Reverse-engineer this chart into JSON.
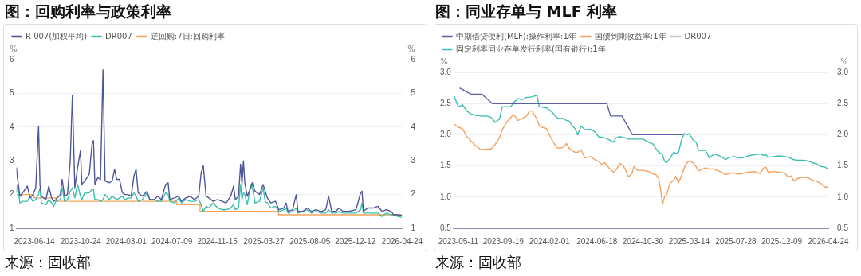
{
  "chart_data": [
    {
      "type": "line",
      "title": "图：回购利率与政策利率",
      "ylabel": "%",
      "y2label": "%",
      "annotations": [
        "来源：固收部"
      ],
      "x": [
        "2023-04-24",
        "2023-04-27",
        "2023-05-04",
        "2023-05-12",
        "2023-05-25",
        "2023-06-02",
        "2023-06-10",
        "2023-06-18",
        "2023-06-26",
        "2023-06-30",
        "2023-07-04",
        "2023-07-17",
        "2023-07-25",
        "2023-08-02",
        "2023-08-08",
        "2023-08-14",
        "2023-08-27",
        "2023-09-01",
        "2023-09-08",
        "2023-09-16",
        "2023-09-24",
        "2023-09-30",
        "2023-10-07",
        "2023-10-15",
        "2023-10-23",
        "2023-10-27",
        "2023-11-04",
        "2023-11-17",
        "2023-11-25",
        "2023-11-29",
        "2023-12-03",
        "2023-12-11",
        "2023-12-19",
        "2023-12-26",
        "2024-01-01",
        "2024-01-13",
        "2024-01-21",
        "2024-01-28",
        "2024-02-03",
        "2024-02-11",
        "2024-02-19",
        "2024-02-27",
        "2024-03-06",
        "2024-03-15",
        "2024-03-23",
        "2024-03-29",
        "2024-04-04",
        "2024-04-16",
        "2024-04-29",
        "2024-05-07",
        "2024-05-19",
        "2024-05-30",
        "2024-06-09",
        "2024-06-21",
        "2024-06-28",
        "2024-07-03",
        "2024-07-16",
        "2024-07-28",
        "2024-08-05",
        "2024-08-17",
        "2024-08-30",
        "2024-09-11",
        "2024-09-23",
        "2024-09-30",
        "2024-10-06",
        "2024-10-14",
        "2024-10-22",
        "2024-11-03",
        "2024-11-16",
        "2024-11-28",
        "2024-12-10",
        "2024-12-23",
        "2024-12-31",
        "2025-01-05",
        "2025-01-14",
        "2025-01-20",
        "2025-01-24",
        "2025-01-28",
        "2025-02-01",
        "2025-02-08",
        "2025-02-18",
        "2025-02-22",
        "2025-03-02",
        "2025-03-15",
        "2025-03-25",
        "2025-03-31",
        "2025-04-06",
        "2025-04-16",
        "2025-04-29",
        "2025-05-09",
        "2025-05-23",
        "2025-05-29",
        "2025-06-04",
        "2025-06-17",
        "2025-06-27",
        "2025-07-02",
        "2025-07-16",
        "2025-07-28",
        "2025-08-09",
        "2025-08-21",
        "2025-09-07",
        "2025-09-19",
        "2025-09-27",
        "2025-10-06",
        "2025-10-18",
        "2025-10-26",
        "2025-11-07",
        "2025-11-24",
        "2025-12-14",
        "2025-12-27",
        "2025-12-31",
        "2026-01-04",
        "2026-01-16",
        "2026-02-01",
        "2026-02-14",
        "2026-02-26",
        "2026-03-10",
        "2026-03-24",
        "2026-03-31",
        "2026-04-12",
        "2026-04-24"
      ],
      "series": [
        {
          "name": "R-007(加权平均)",
          "color": "#4e5699",
          "values": [
            2.8,
            2.5,
            1.95,
            2.05,
            2.25,
            1.9,
            2.0,
            2.2,
            4.03,
            2.3,
            1.95,
            1.85,
            2.25,
            1.9,
            1.8,
            1.85,
            2.0,
            2.45,
            1.95,
            2.0,
            3.0,
            4.95,
            2.2,
            2.8,
            3.3,
            2.3,
            2.4,
            2.6,
            3.5,
            3.6,
            2.3,
            2.5,
            2.45,
            5.7,
            2.4,
            2.35,
            2.4,
            2.75,
            2.45,
            2.45,
            2.05,
            2.0,
            2.0,
            1.95,
            2.55,
            2.75,
            2.05,
            1.95,
            2.1,
            1.85,
            1.85,
            1.95,
            1.85,
            2.3,
            2.35,
            1.85,
            1.9,
            1.95,
            1.8,
            1.9,
            1.95,
            1.85,
            1.95,
            2.65,
            2.85,
            1.95,
            1.9,
            1.8,
            1.85,
            1.8,
            1.75,
            1.95,
            2.25,
            1.85,
            1.95,
            2.9,
            2.3,
            3.0,
            2.35,
            1.95,
            2.2,
            2.35,
            2.1,
            2.0,
            2.3,
            2.1,
            1.9,
            1.75,
            1.8,
            1.55,
            1.6,
            1.75,
            1.5,
            1.55,
            2.0,
            1.5,
            1.5,
            1.6,
            1.5,
            1.55,
            1.5,
            1.55,
            1.95,
            1.5,
            1.5,
            1.6,
            1.5,
            1.5,
            1.55,
            2.05,
            2.1,
            1.5,
            1.6,
            1.6,
            1.65,
            1.5,
            1.55,
            1.5,
            1.4,
            1.4,
            1.38
          ]
        },
        {
          "name": "DR007",
          "color": "#3dbfae",
          "values": [
            2.05,
            2.3,
            1.75,
            1.8,
            1.8,
            1.95,
            1.8,
            1.85,
            2.0,
            2.2,
            1.75,
            1.7,
            1.85,
            1.75,
            1.65,
            1.8,
            1.85,
            2.2,
            1.8,
            1.85,
            2.1,
            2.2,
            1.9,
            2.3,
            1.95,
            1.85,
            2.05,
            2.05,
            2.15,
            2.15,
            1.85,
            1.85,
            1.8,
            1.85,
            2.0,
            1.85,
            1.95,
            1.9,
            1.85,
            1.9,
            1.95,
            1.85,
            1.9,
            1.9,
            2.05,
            1.95,
            1.8,
            1.85,
            2.05,
            1.85,
            1.85,
            1.8,
            1.8,
            2.05,
            2.0,
            1.8,
            1.75,
            1.9,
            1.75,
            1.85,
            1.8,
            1.8,
            1.85,
            1.7,
            1.5,
            1.65,
            1.6,
            1.75,
            1.6,
            1.55,
            1.55,
            1.6,
            1.7,
            1.55,
            1.6,
            2.3,
            1.85,
            2.05,
            2.0,
            1.7,
            2.3,
            2.25,
            1.75,
            1.8,
            2.2,
            1.8,
            1.75,
            1.6,
            1.65,
            1.5,
            1.55,
            1.6,
            1.45,
            1.5,
            1.6,
            1.45,
            1.5,
            1.55,
            1.45,
            1.5,
            1.45,
            1.45,
            1.55,
            1.45,
            1.45,
            1.5,
            1.45,
            1.45,
            1.45,
            1.55,
            1.75,
            1.45,
            1.45,
            1.45,
            1.45,
            1.35,
            1.45,
            1.4,
            1.4,
            1.35,
            1.32
          ]
        },
        {
          "name": "逆回购:7日:回购利率",
          "color": "#f5a55a",
          "type": "step",
          "x": [
            "2023-04-24",
            "2023-06-13",
            "2023-08-15",
            "2024-07-22",
            "2024-09-27",
            "2025-05-08",
            "2026-04-24"
          ],
          "values": [
            2.0,
            1.9,
            1.8,
            1.7,
            1.5,
            1.4,
            1.4
          ]
        }
      ],
      "xlim": [
        "2023-04-24",
        "2026-04-24"
      ],
      "xticks": [
        "2023-06-14",
        "2023-10-24",
        "2024-03-01",
        "2024-07-09",
        "2024-11-15",
        "2025-03-27",
        "2025-08-05",
        "2025-12-12",
        "2026-04-24"
      ],
      "ylim": [
        1,
        6
      ],
      "yticks": [
        1,
        2,
        3,
        4,
        5,
        6
      ],
      "y2lim": [
        1,
        6
      ],
      "y2ticks": [
        1,
        2,
        3,
        4,
        5,
        6
      ],
      "grid": "y",
      "legend": "top left",
      "marker": "none",
      "line_style": "solid"
    },
    {
      "type": "line",
      "title": "图：同业存单与 MLF 利率",
      "ylabel": "%",
      "y2label": "%",
      "annotations": [
        "来源：固收部"
      ],
      "x": [
        "2023-04-27",
        "2023-05-11",
        "2023-05-23",
        "2023-06-05",
        "2023-06-17",
        "2023-06-30",
        "2023-07-16",
        "2023-08-02",
        "2023-08-14",
        "2023-08-27",
        "2023-09-08",
        "2023-09-16",
        "2023-09-29",
        "2023-10-11",
        "2023-10-20",
        "2023-11-01",
        "2023-11-13",
        "2023-11-26",
        "2023-12-04",
        "2023-12-12",
        "2023-12-26",
        "2024-01-02",
        "2024-01-10",
        "2024-01-23",
        "2024-01-31",
        "2024-02-10",
        "2024-02-21",
        "2024-02-29",
        "2024-03-12",
        "2024-03-21",
        "2024-03-29",
        "2024-04-06",
        "2024-04-15",
        "2024-04-23",
        "2024-05-03",
        "2024-05-14",
        "2024-05-30",
        "2024-06-12",
        "2024-06-24",
        "2024-07-02",
        "2024-07-11",
        "2024-07-23",
        "2024-08-05",
        "2024-08-13",
        "2024-08-25",
        "2024-09-03",
        "2024-09-09",
        "2024-09-18",
        "2024-09-28",
        "2024-10-04",
        "2024-10-14",
        "2024-10-31",
        "2024-11-16",
        "2024-11-29",
        "2024-12-07",
        "2024-12-15",
        "2024-12-21",
        "2024-12-26",
        "2025-01-01",
        "2025-01-07",
        "2025-01-17",
        "2025-01-28",
        "2025-02-03",
        "2025-02-11",
        "2025-02-20",
        "2025-02-28",
        "2025-03-08",
        "2025-03-14",
        "2025-03-25",
        "2025-04-04",
        "2025-04-10",
        "2025-05-01",
        "2025-05-11",
        "2025-05-26",
        "2025-06-16",
        "2025-06-28",
        "2025-07-10",
        "2025-07-23",
        "2025-08-04",
        "2025-08-17",
        "2025-09-02",
        "2025-09-19",
        "2025-10-06",
        "2025-10-18",
        "2025-10-24",
        "2025-10-30",
        "2025-11-16",
        "2025-12-02",
        "2025-12-19",
        "2025-12-27",
        "2026-01-05",
        "2026-01-13",
        "2026-01-25",
        "2026-02-11",
        "2026-02-24",
        "2026-03-04",
        "2026-03-21",
        "2026-04-02",
        "2026-04-14",
        "2026-04-24"
      ],
      "series": [
        {
          "name": "中期借贷便利(MLF):操作利率:1年",
          "color": "#5b5ea6",
          "x": [
            "2023-05-15",
            "2023-06-17",
            "2023-07-19",
            "2023-08-18",
            "2024-07-17",
            "2024-07-28",
            "2024-08-30",
            "2024-09-30",
            "2025-02-24"
          ],
          "values": [
            2.75,
            2.65,
            2.65,
            2.5,
            2.5,
            2.3,
            2.3,
            2.0,
            2.0
          ]
        },
        {
          "name": "国债到期收益率:1年",
          "color": "#f4a15d",
          "values": [
            2.18,
            2.12,
            2.1,
            1.97,
            1.9,
            1.83,
            1.76,
            1.77,
            1.77,
            1.85,
            1.95,
            2.08,
            2.2,
            2.28,
            2.32,
            2.23,
            2.26,
            2.3,
            2.38,
            2.38,
            2.25,
            2.15,
            2.12,
            2.1,
            2.0,
            1.9,
            1.8,
            1.78,
            1.8,
            1.86,
            1.78,
            1.75,
            1.72,
            1.72,
            1.76,
            1.63,
            1.65,
            1.6,
            1.57,
            1.52,
            1.55,
            1.47,
            1.4,
            1.44,
            1.54,
            1.5,
            1.44,
            1.32,
            1.38,
            1.49,
            1.43,
            1.43,
            1.41,
            1.37,
            1.36,
            1.3,
            1.12,
            0.88,
            1.0,
            1.04,
            1.22,
            1.27,
            1.33,
            1.23,
            1.35,
            1.47,
            1.55,
            1.58,
            1.55,
            1.48,
            1.42,
            1.47,
            1.45,
            1.45,
            1.4,
            1.36,
            1.38,
            1.39,
            1.37,
            1.38,
            1.4,
            1.41,
            1.38,
            1.47,
            1.48,
            1.4,
            1.41,
            1.4,
            1.38,
            1.32,
            1.34,
            1.26,
            1.3,
            1.32,
            1.31,
            1.28,
            1.25,
            1.22,
            1.16,
            1.16
          ]
        },
        {
          "name": "DR007",
          "color": "#c8c8c8",
          "values": [
            null,
            null,
            null,
            null,
            null,
            null,
            null,
            null,
            null,
            null,
            null,
            null,
            null,
            null,
            null,
            null,
            null,
            null,
            null,
            null,
            null,
            null,
            null,
            null,
            null,
            null,
            null,
            null,
            null,
            null,
            null,
            null,
            null,
            null,
            null,
            null,
            null,
            null,
            null,
            null,
            null,
            null,
            null,
            null,
            null,
            null,
            null,
            null,
            null,
            null,
            null,
            null,
            null,
            null,
            null,
            null,
            null,
            null,
            null,
            null,
            null,
            null,
            null,
            null,
            null,
            null,
            null,
            null,
            null,
            null,
            null,
            null,
            null,
            null,
            null,
            null,
            null,
            null,
            null,
            null,
            null,
            null,
            null,
            null,
            null,
            null,
            null,
            null,
            null,
            null,
            null,
            null,
            null,
            null,
            null,
            null,
            null,
            null,
            null,
            null
          ]
        },
        {
          "name": "固定利率同业存单发行利率(国有银行):1年",
          "color": "#3cbfb0",
          "values": [
            2.64,
            2.45,
            2.48,
            2.38,
            2.33,
            2.31,
            2.3,
            2.3,
            2.28,
            2.2,
            2.25,
            2.45,
            2.45,
            2.45,
            2.52,
            2.58,
            2.56,
            2.6,
            2.6,
            2.61,
            2.63,
            2.45,
            2.44,
            2.43,
            2.4,
            2.35,
            2.28,
            2.26,
            2.26,
            2.23,
            2.22,
            2.15,
            2.1,
            2.0,
            2.14,
            2.08,
            2.09,
            2.05,
            1.96,
            1.96,
            1.95,
            1.92,
            1.88,
            1.95,
            1.97,
            1.95,
            1.95,
            1.93,
            1.93,
            1.93,
            1.93,
            1.93,
            1.88,
            1.85,
            1.78,
            1.72,
            1.7,
            1.68,
            1.58,
            1.55,
            1.62,
            1.72,
            1.7,
            1.72,
            1.92,
            2.02,
            2.0,
            2.02,
            1.92,
            1.87,
            1.75,
            1.75,
            1.63,
            1.69,
            1.65,
            1.6,
            1.64,
            1.65,
            1.63,
            1.63,
            1.66,
            1.68,
            1.69,
            1.67,
            1.68,
            1.64,
            1.65,
            1.66,
            1.65,
            1.64,
            1.62,
            1.6,
            1.59,
            1.59,
            1.58,
            1.56,
            1.53,
            1.49,
            1.48,
            1.45
          ]
        }
      ],
      "xlim": [
        "2023-04-27",
        "2026-04-24"
      ],
      "xticks": [
        "2023-05-11",
        "2023-09-19",
        "2024-02-01",
        "2024-06-18",
        "2024-10-30",
        "2025-03-14",
        "2025-07-28",
        "2025-12-09",
        "2026-04-24"
      ],
      "ylim": [
        0.5,
        3
      ],
      "yticks": [
        {
          "value": 0.5,
          "label": "0.5"
        },
        {
          "value": 1,
          "label": "1.0"
        },
        {
          "value": 1.5,
          "label": "1.5"
        },
        {
          "value": 2,
          "label": "2.0"
        },
        {
          "value": 2.5,
          "label": "2.5"
        },
        {
          "value": 3,
          "label": "3.0"
        }
      ],
      "y2lim": [
        0.5,
        3
      ],
      "y2ticks": [
        {
          "value": 0.5,
          "label": "0.5"
        },
        {
          "value": 1,
          "label": "1.0"
        },
        {
          "value": 1.5,
          "label": "1.5"
        },
        {
          "value": 2,
          "label": "2.0"
        },
        {
          "value": 2.5,
          "label": "2.5"
        },
        {
          "value": 3,
          "label": "3.0"
        }
      ],
      "grid": "y",
      "legend": "top left",
      "marker": "none",
      "line_style": "solid"
    }
  ]
}
